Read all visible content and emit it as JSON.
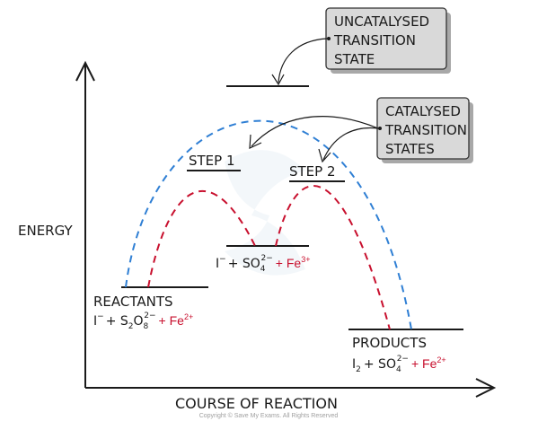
{
  "axes": {
    "y_label": "ENERGY",
    "x_label": "COURSE OF REACTION"
  },
  "callouts": {
    "uncatalysed": [
      "UNCATALYSED",
      "TRANSITION",
      "STATE"
    ],
    "catalysed": [
      "CATALYSED",
      "TRANSITION",
      "STATES"
    ]
  },
  "labels": {
    "step1": "STEP 1",
    "step2": "STEP 2",
    "reactants": "REACTANTS"
  },
  "formulas": {
    "reactants": {
      "i": "I",
      "i_charge": "−",
      "plus1": "+ S",
      "s_sub": "2",
      "o": "O",
      "o_sub": "8",
      "o_charge": "2−",
      "fe_text": "+ Fe",
      "fe_charge": "2+"
    },
    "intermediate": {
      "i": "I",
      "i_charge": "−",
      "plus1": "+ SO",
      "so_sub": "4",
      "so_charge": "2−",
      "fe_text": "+ Fe",
      "fe_charge": "3+"
    },
    "products": {
      "title": "PRODUCTS",
      "i": "I",
      "i_sub": "2",
      "plus1": "+ SO",
      "so_sub": "4",
      "so_charge": "2−",
      "fe_text": "+ Fe",
      "fe_charge": "2+"
    }
  },
  "colors": {
    "uncatalysed_curve": "#2f7fd4",
    "catalysed_curve": "#c8102e",
    "catalyst_text": "#c8102e"
  },
  "footer": "Copyright © Save My Exams. All Rights Reserved"
}
